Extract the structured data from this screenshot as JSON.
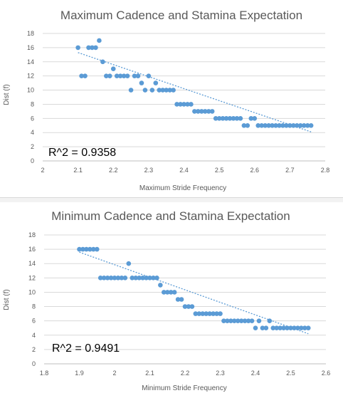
{
  "chart_data": [
    {
      "type": "scatter",
      "title": "Maximum Cadence and Stamina Expectation",
      "xlabel": "Maximum Stride Frequency",
      "ylabel": "Dist (f)",
      "xlim": [
        2,
        2.8
      ],
      "ylim": [
        0,
        18
      ],
      "xticks": [
        "2",
        "2.1",
        "2.2",
        "2.3",
        "2.4",
        "2.5",
        "2.6",
        "2.7",
        "2.8"
      ],
      "yticks": [
        "0",
        "2",
        "4",
        "6",
        "8",
        "10",
        "12",
        "14",
        "16",
        "18"
      ],
      "annotation": "R^2 = 0.9358",
      "grid": true,
      "trendline": {
        "x": [
          2.1,
          2.76
        ],
        "y": [
          15.3,
          4.1
        ]
      },
      "points": [
        [
          2.1,
          16
        ],
        [
          2.11,
          12
        ],
        [
          2.12,
          12
        ],
        [
          2.13,
          16
        ],
        [
          2.14,
          16
        ],
        [
          2.15,
          16
        ],
        [
          2.16,
          17
        ],
        [
          2.17,
          14
        ],
        [
          2.18,
          12
        ],
        [
          2.19,
          12
        ],
        [
          2.2,
          13
        ],
        [
          2.21,
          12
        ],
        [
          2.22,
          12
        ],
        [
          2.23,
          12
        ],
        [
          2.24,
          12
        ],
        [
          2.25,
          10
        ],
        [
          2.26,
          12
        ],
        [
          2.27,
          12
        ],
        [
          2.28,
          11
        ],
        [
          2.29,
          10
        ],
        [
          2.3,
          12
        ],
        [
          2.31,
          10
        ],
        [
          2.32,
          11
        ],
        [
          2.33,
          10
        ],
        [
          2.34,
          10
        ],
        [
          2.35,
          10
        ],
        [
          2.36,
          10
        ],
        [
          2.37,
          10
        ],
        [
          2.38,
          8
        ],
        [
          2.39,
          8
        ],
        [
          2.4,
          8
        ],
        [
          2.41,
          8
        ],
        [
          2.42,
          8
        ],
        [
          2.43,
          7
        ],
        [
          2.44,
          7
        ],
        [
          2.45,
          7
        ],
        [
          2.46,
          7
        ],
        [
          2.47,
          7
        ],
        [
          2.48,
          7
        ],
        [
          2.49,
          6
        ],
        [
          2.5,
          6
        ],
        [
          2.51,
          6
        ],
        [
          2.52,
          6
        ],
        [
          2.53,
          6
        ],
        [
          2.54,
          6
        ],
        [
          2.55,
          6
        ],
        [
          2.56,
          6
        ],
        [
          2.57,
          5
        ],
        [
          2.58,
          5
        ],
        [
          2.59,
          6
        ],
        [
          2.6,
          6
        ],
        [
          2.61,
          5
        ],
        [
          2.62,
          5
        ],
        [
          2.63,
          5
        ],
        [
          2.64,
          5
        ],
        [
          2.65,
          5
        ],
        [
          2.66,
          5
        ],
        [
          2.67,
          5
        ],
        [
          2.68,
          5
        ],
        [
          2.69,
          5
        ],
        [
          2.7,
          5
        ],
        [
          2.71,
          5
        ],
        [
          2.72,
          5
        ],
        [
          2.73,
          5
        ],
        [
          2.74,
          5
        ],
        [
          2.75,
          5
        ],
        [
          2.76,
          5
        ]
      ]
    },
    {
      "type": "scatter",
      "title": "Minimum Cadence and Stamina Expectation",
      "xlabel": "Minimum Stride Frequency",
      "ylabel": "Dist (f)",
      "xlim": [
        1.8,
        2.6
      ],
      "ylim": [
        0,
        18
      ],
      "xticks": [
        "1.8",
        "1.9",
        "2",
        "2.1",
        "2.2",
        "2.3",
        "2.4",
        "2.5",
        "2.6"
      ],
      "yticks": [
        "0",
        "2",
        "4",
        "6",
        "8",
        "10",
        "12",
        "14",
        "16",
        "18"
      ],
      "annotation": "R^2 = 0.9491",
      "grid": true,
      "trendline": {
        "x": [
          1.9,
          2.55
        ],
        "y": [
          15.6,
          4.2
        ]
      },
      "points": [
        [
          1.9,
          16
        ],
        [
          1.91,
          16
        ],
        [
          1.92,
          16
        ],
        [
          1.93,
          16
        ],
        [
          1.94,
          16
        ],
        [
          1.95,
          16
        ],
        [
          1.96,
          12
        ],
        [
          1.97,
          12
        ],
        [
          1.98,
          12
        ],
        [
          1.99,
          12
        ],
        [
          2.0,
          12
        ],
        [
          2.01,
          12
        ],
        [
          2.02,
          12
        ],
        [
          2.03,
          12
        ],
        [
          2.04,
          14
        ],
        [
          2.05,
          12
        ],
        [
          2.06,
          12
        ],
        [
          2.07,
          12
        ],
        [
          2.08,
          12
        ],
        [
          2.09,
          12
        ],
        [
          2.1,
          12
        ],
        [
          2.11,
          12
        ],
        [
          2.12,
          12
        ],
        [
          2.13,
          11
        ],
        [
          2.14,
          10
        ],
        [
          2.15,
          10
        ],
        [
          2.16,
          10
        ],
        [
          2.17,
          10
        ],
        [
          2.18,
          9
        ],
        [
          2.19,
          9
        ],
        [
          2.2,
          8
        ],
        [
          2.21,
          8
        ],
        [
          2.22,
          8
        ],
        [
          2.23,
          7
        ],
        [
          2.24,
          7
        ],
        [
          2.25,
          7
        ],
        [
          2.26,
          7
        ],
        [
          2.27,
          7
        ],
        [
          2.28,
          7
        ],
        [
          2.29,
          7
        ],
        [
          2.3,
          7
        ],
        [
          2.31,
          6
        ],
        [
          2.32,
          6
        ],
        [
          2.33,
          6
        ],
        [
          2.34,
          6
        ],
        [
          2.35,
          6
        ],
        [
          2.36,
          6
        ],
        [
          2.37,
          6
        ],
        [
          2.38,
          6
        ],
        [
          2.39,
          6
        ],
        [
          2.4,
          5
        ],
        [
          2.41,
          6
        ],
        [
          2.42,
          5
        ],
        [
          2.43,
          5
        ],
        [
          2.44,
          6
        ],
        [
          2.45,
          5
        ],
        [
          2.46,
          5
        ],
        [
          2.47,
          5
        ],
        [
          2.48,
          5
        ],
        [
          2.49,
          5
        ],
        [
          2.5,
          5
        ],
        [
          2.51,
          5
        ],
        [
          2.52,
          5
        ],
        [
          2.53,
          5
        ],
        [
          2.54,
          5
        ],
        [
          2.55,
          5
        ]
      ]
    }
  ]
}
